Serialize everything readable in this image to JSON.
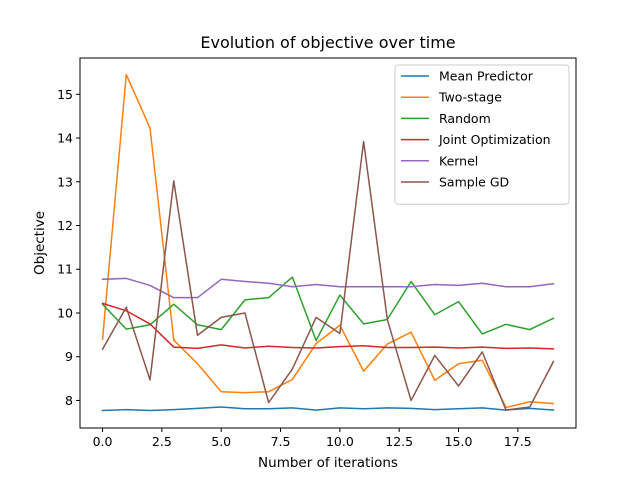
{
  "chart_data": {
    "type": "line",
    "title": "Evolution of objective over time",
    "xlabel": "Number of iterations",
    "ylabel": "Objective",
    "xlim": [
      -0.95,
      19.95
    ],
    "ylim": [
      7.37,
      15.83
    ],
    "xticks": [
      0.0,
      2.5,
      5.0,
      7.5,
      10.0,
      12.5,
      15.0,
      17.5
    ],
    "xtick_labels": [
      "0.0",
      "2.5",
      "5.0",
      "7.5",
      "10.0",
      "12.5",
      "15.0",
      "17.5"
    ],
    "yticks": [
      8,
      9,
      10,
      11,
      12,
      13,
      14,
      15
    ],
    "ytick_labels": [
      "8",
      "9",
      "10",
      "11",
      "12",
      "13",
      "14",
      "15"
    ],
    "grid": false,
    "legend_position": "top-right",
    "x": [
      0,
      1,
      2,
      3,
      4,
      5,
      6,
      7,
      8,
      9,
      10,
      11,
      12,
      13,
      14,
      15,
      16,
      17,
      18,
      19
    ],
    "series": [
      {
        "name": "Mean Predictor",
        "color": "#1f77b4",
        "values": [
          7.77,
          7.79,
          7.77,
          7.79,
          7.82,
          7.85,
          7.81,
          7.81,
          7.83,
          7.78,
          7.83,
          7.81,
          7.83,
          7.82,
          7.79,
          7.81,
          7.83,
          7.78,
          7.82,
          7.78
        ]
      },
      {
        "name": "Two-stage",
        "color": "#ff7f0e",
        "values": [
          9.4,
          15.45,
          14.23,
          9.38,
          8.84,
          8.2,
          8.18,
          8.2,
          8.48,
          9.3,
          9.72,
          8.67,
          9.29,
          9.56,
          8.46,
          8.84,
          8.92,
          7.84,
          7.97,
          7.93
        ]
      },
      {
        "name": "Random",
        "color": "#2ca02c",
        "values": [
          10.2,
          9.63,
          9.73,
          10.2,
          9.73,
          9.62,
          10.3,
          10.35,
          10.82,
          9.37,
          10.41,
          9.75,
          9.85,
          10.72,
          9.96,
          10.26,
          9.52,
          9.74,
          9.62,
          9.88
        ]
      },
      {
        "name": "Joint Optimization",
        "color": "#d62728",
        "values": [
          10.22,
          10.05,
          9.75,
          9.22,
          9.19,
          9.27,
          9.2,
          9.24,
          9.21,
          9.2,
          9.23,
          9.25,
          9.21,
          9.21,
          9.22,
          9.2,
          9.22,
          9.19,
          9.2,
          9.18
        ]
      },
      {
        "name": "Kernel",
        "color": "#9467bd",
        "values": [
          10.77,
          10.79,
          10.63,
          10.35,
          10.35,
          10.77,
          10.72,
          10.68,
          10.6,
          10.65,
          10.6,
          10.6,
          10.6,
          10.6,
          10.65,
          10.63,
          10.68,
          10.6,
          10.6,
          10.67
        ]
      },
      {
        "name": "Sample GD",
        "color": "#8c564b",
        "values": [
          9.17,
          10.13,
          8.47,
          13.02,
          9.49,
          9.9,
          10.0,
          7.95,
          8.72,
          9.9,
          9.53,
          13.92,
          9.85,
          8.0,
          9.03,
          8.33,
          9.11,
          7.78,
          7.85,
          8.89
        ]
      }
    ]
  }
}
